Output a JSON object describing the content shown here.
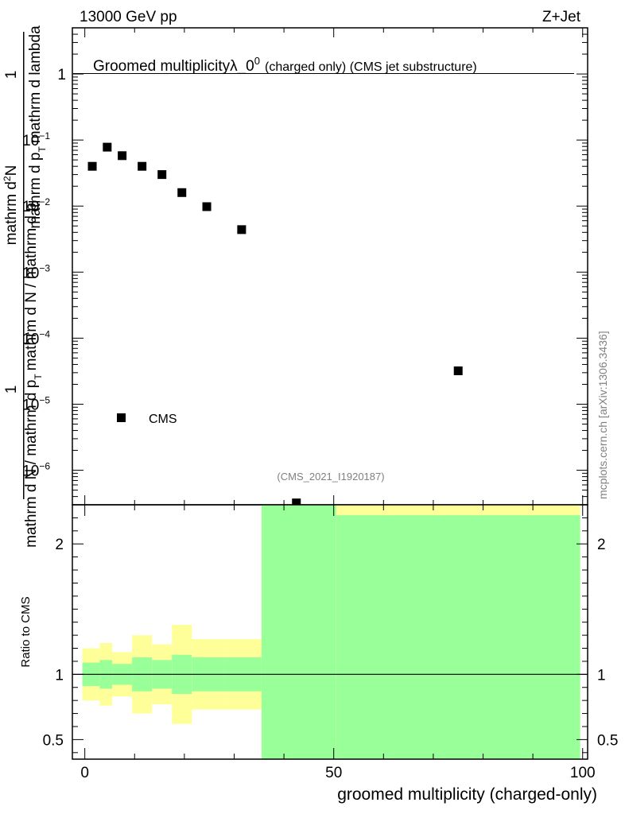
{
  "header": {
    "left": "13000 GeV pp",
    "right": "Z+Jet"
  },
  "side_label": "mcplots.cern.ch [arXiv:1306.3436]",
  "analysis_id": "(CMS_2021_I1920187)",
  "colors": {
    "data_marker": "#000000",
    "band_inner": "#99ff99",
    "band_outer": "#ffff99",
    "ref_line": "#000000"
  },
  "chart_data": [
    {
      "type": "scatter",
      "title_main": "Groomed multiplicityλ_0",
      "title_sup": "0",
      "title_tail": "(charged only) (CMS jet substructure)",
      "ylabel_top": "1",
      "ylabel_top_frac_num": "mathrm d",
      "ylabel_top_frac_sup": "2",
      "ylabel_top_frac_num_end": "N",
      "ylabel_top_frac_den": "mathrm d p",
      "ylabel_top_frac_den_sub": "T",
      "ylabel_top_frac_den_end": "mathrm d lambda",
      "ylabel_bottom_num": "1",
      "ylabel_bottom_den_a": "mathrm d N / mathrm d p",
      "ylabel_bottom_den_sub": "T",
      "ylabel_bottom_den_b": "mathrm d N / mathrm d p",
      "y_scale": "log",
      "ylim": [
        3e-07,
        5
      ],
      "xlim": [
        -2.5,
        101
      ],
      "y_ticks": [
        {
          "value": 1,
          "label": "1",
          "exp": ""
        },
        {
          "value": 0.1,
          "label": "10",
          "exp": "−1"
        },
        {
          "value": 0.01,
          "label": "10",
          "exp": "−2"
        },
        {
          "value": 0.001,
          "label": "10",
          "exp": "−3"
        },
        {
          "value": 0.0001,
          "label": "10",
          "exp": "−4"
        },
        {
          "value": 1e-05,
          "label": "10",
          "exp": "−5"
        },
        {
          "value": 1e-06,
          "label": "10",
          "exp": "−6"
        }
      ],
      "series": [
        {
          "name": "CMS",
          "marker": "square",
          "x": [
            1.5,
            4.5,
            7.5,
            11.5,
            15.5,
            19.5,
            24.5,
            31.5,
            42.5,
            75
          ],
          "y": [
            0.04,
            0.078,
            0.058,
            0.04,
            0.03,
            0.016,
            0.0098,
            0.0044,
            3.2e-07,
            3.2e-05
          ]
        }
      ],
      "legend_position": "lower-left"
    },
    {
      "type": "area",
      "ylabel": "Ratio to CMS",
      "xlabel": "groomed multiplicity (charged-only)",
      "xlim": [
        -2.5,
        101
      ],
      "ylim": [
        0.35,
        2.3
      ],
      "x_ticks": [
        0,
        50,
        100
      ],
      "y_ticks": [
        0.5,
        1,
        2
      ],
      "reference_line": 1,
      "bins": [
        {
          "lo": -0.5,
          "hi": 3,
          "inner": [
            0.91,
            1.09
          ],
          "outer": [
            0.8,
            1.2
          ]
        },
        {
          "lo": 3,
          "hi": 5.5,
          "inner": [
            0.89,
            1.11
          ],
          "outer": [
            0.76,
            1.24
          ]
        },
        {
          "lo": 5.5,
          "hi": 9.5,
          "inner": [
            0.92,
            1.08
          ],
          "outer": [
            0.83,
            1.17
          ]
        },
        {
          "lo": 9.5,
          "hi": 13.5,
          "inner": [
            0.87,
            1.13
          ],
          "outer": [
            0.7,
            1.3
          ]
        },
        {
          "lo": 13.5,
          "hi": 17.5,
          "inner": [
            0.89,
            1.11
          ],
          "outer": [
            0.77,
            1.23
          ]
        },
        {
          "lo": 17.5,
          "hi": 21.5,
          "inner": [
            0.85,
            1.15
          ],
          "outer": [
            0.62,
            1.38
          ]
        },
        {
          "lo": 21.5,
          "hi": 28,
          "inner": [
            0.87,
            1.13
          ],
          "outer": [
            0.73,
            1.27
          ]
        },
        {
          "lo": 28,
          "hi": 35.5,
          "inner": [
            0.87,
            1.13
          ],
          "outer": [
            0.73,
            1.27
          ]
        },
        {
          "lo": 35.5,
          "hi": 50.5,
          "inner": [
            0.35,
            2.3
          ],
          "outer": [
            0.35,
            2.3
          ]
        },
        {
          "lo": 50.5,
          "hi": 99.5,
          "inner": [
            0.35,
            2.22
          ],
          "outer": [
            0.35,
            2.3
          ]
        }
      ]
    }
  ]
}
